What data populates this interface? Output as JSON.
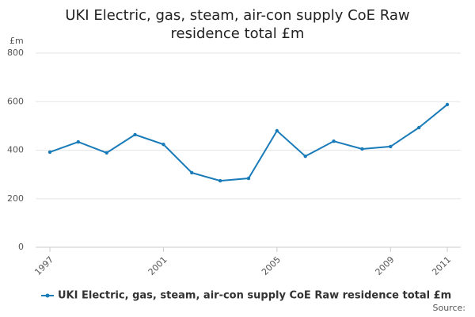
{
  "chart_data": {
    "type": "line",
    "title": "UKI Electric, gas, steam, air-con supply CoE Raw residence total £m",
    "y_label": "£m",
    "source": "Source:",
    "x": [
      1997,
      1998,
      1999,
      2000,
      2001,
      2002,
      2003,
      2004,
      2005,
      2006,
      2007,
      2008,
      2009,
      2010,
      2011
    ],
    "series": [
      {
        "name": "UKI Electric, gas, steam, air-con supply CoE Raw residence total £m",
        "color": "#1a7bb9",
        "values": [
          392,
          434,
          389,
          464,
          424,
          307,
          274,
          284,
          480,
          375,
          437,
          405,
          415,
          493,
          588
        ]
      }
    ],
    "xlim": [
      1997,
      2011
    ],
    "xticks": [
      1997,
      2001,
      2005,
      2009,
      2011
    ],
    "ylim": [
      0,
      800
    ],
    "yticks": [
      0,
      200,
      400,
      600,
      800
    ],
    "grid": true,
    "legend": "bottom"
  }
}
